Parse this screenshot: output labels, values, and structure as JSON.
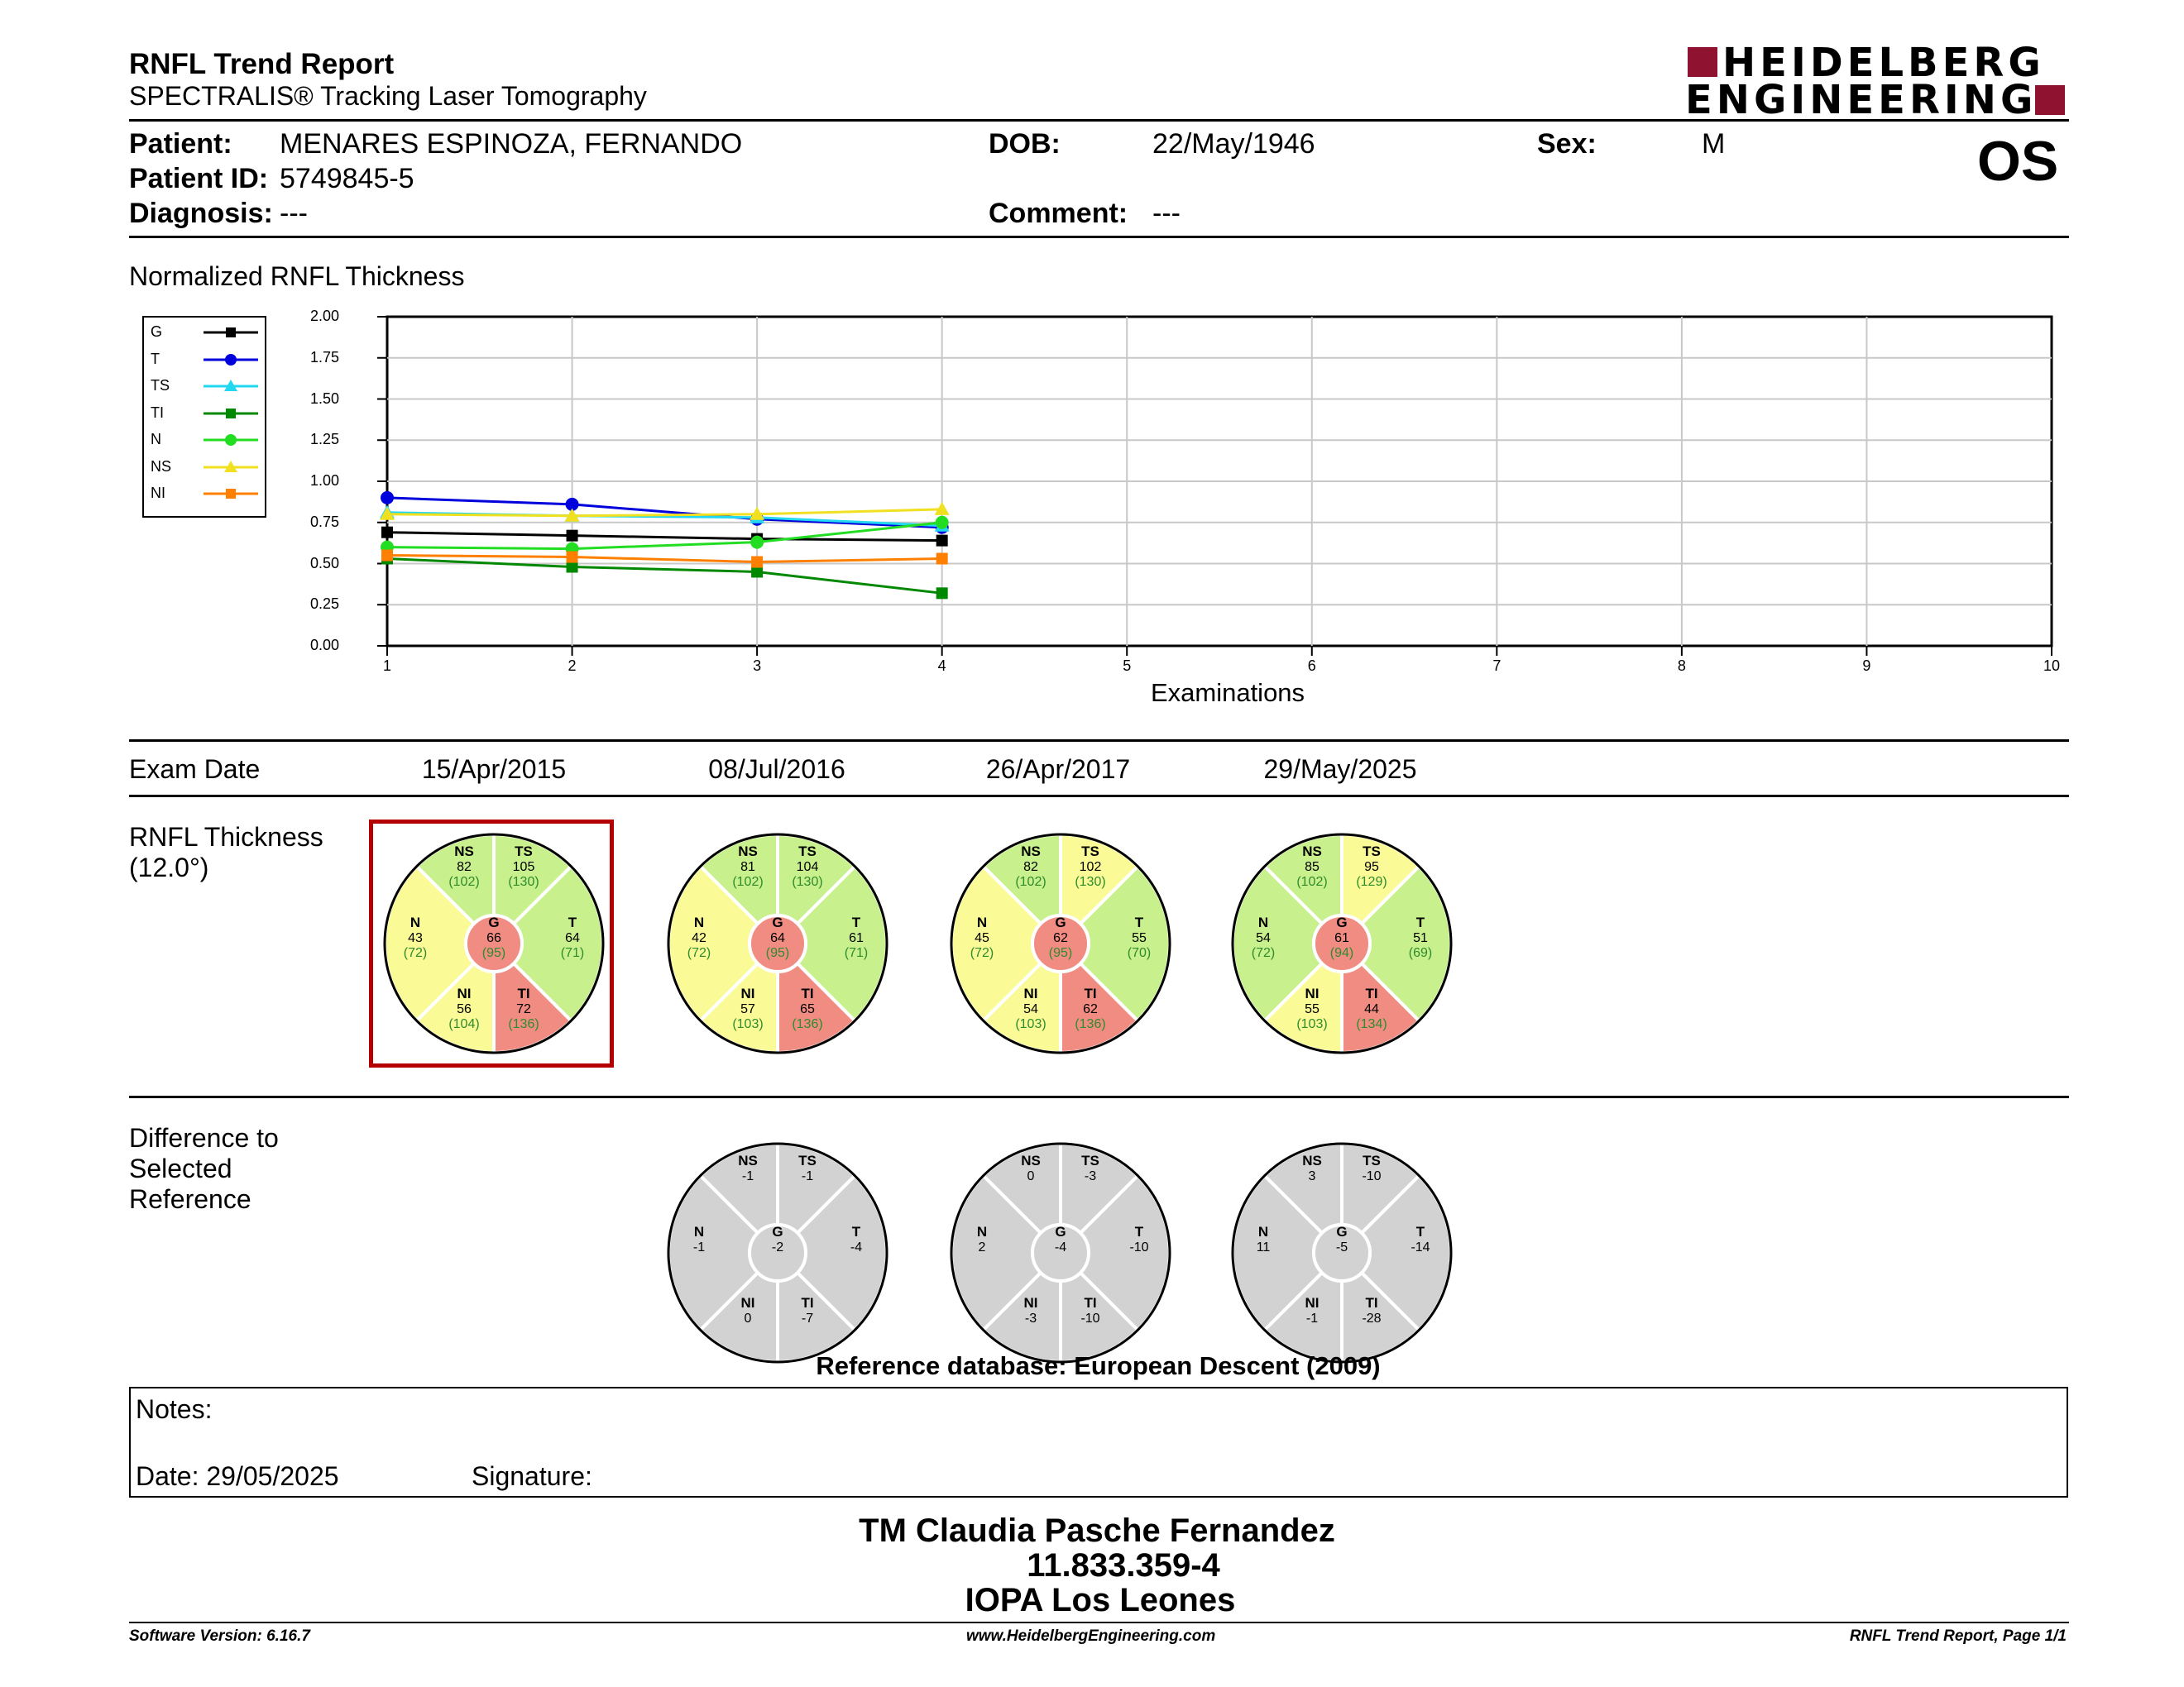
{
  "header": {
    "title": "RNFL Trend Report",
    "subtitle": "SPECTRALIS® Tracking Laser Tomography",
    "logo_line1": "HEIDELBERG",
    "logo_line2": "ENGINEERING",
    "eye": "OS"
  },
  "patient": {
    "patient_label": "Patient:",
    "patient_value": "MENARES ESPINOZA, FERNANDO",
    "id_label": "Patient ID:",
    "id_value": "5749845-5",
    "diagnosis_label": "Diagnosis:",
    "diagnosis_value": "---",
    "dob_label": "DOB:",
    "dob_value": "22/May/1946",
    "comment_label": "Comment:",
    "comment_value": "---",
    "sex_label": "Sex:",
    "sex_value": "M"
  },
  "chart_data": {
    "type": "line",
    "title": "Normalized RNFL Thickness",
    "xlabel": "Examinations",
    "ylabel": "",
    "x": [
      1,
      2,
      3,
      4
    ],
    "xlim": [
      1,
      10
    ],
    "ylim": [
      0,
      2
    ],
    "x_ticks": [
      "1",
      "2",
      "3",
      "4",
      "5",
      "6",
      "7",
      "8",
      "9",
      "10"
    ],
    "y_ticks": [
      "0.00",
      "0.25",
      "0.50",
      "0.75",
      "1.00",
      "1.25",
      "1.50",
      "1.75",
      "2.00"
    ],
    "legend_position": "left",
    "grid": true,
    "series": [
      {
        "name": "G",
        "color": "#000000",
        "marker": "square",
        "values": [
          0.69,
          0.67,
          0.65,
          0.64
        ]
      },
      {
        "name": "T",
        "color": "#0000dd",
        "marker": "circle",
        "values": [
          0.9,
          0.86,
          0.77,
          0.72
        ]
      },
      {
        "name": "TS",
        "color": "#22d8f0",
        "marker": "triangle",
        "values": [
          0.81,
          0.79,
          0.78,
          0.73
        ]
      },
      {
        "name": "TI",
        "color": "#008800",
        "marker": "square",
        "values": [
          0.53,
          0.48,
          0.45,
          0.32
        ]
      },
      {
        "name": "N",
        "color": "#22dd22",
        "marker": "circle",
        "values": [
          0.6,
          0.59,
          0.63,
          0.75
        ]
      },
      {
        "name": "NS",
        "color": "#f0e020",
        "marker": "triangle",
        "values": [
          0.8,
          0.79,
          0.8,
          0.83
        ]
      },
      {
        "name": "NI",
        "color": "#ff8000",
        "marker": "square",
        "values": [
          0.55,
          0.54,
          0.51,
          0.53
        ]
      }
    ]
  },
  "exams": {
    "label": "Exam Date",
    "dates": [
      "15/Apr/2015",
      "08/Jul/2016",
      "26/Apr/2017",
      "29/May/2025"
    ]
  },
  "thickness": {
    "label_line1": "RNFL Thickness",
    "label_line2": "(12.0°)",
    "selected_reference_index": 0,
    "colors": {
      "normal": "#c8f08c",
      "borderline": "#fafa96",
      "outside": "#f08c82"
    },
    "circles": [
      {
        "sectors": {
          "NS": {
            "value": "82",
            "normal": "(102)",
            "status": "normal"
          },
          "TS": {
            "value": "105",
            "normal": "(130)",
            "status": "normal"
          },
          "N": {
            "value": "43",
            "normal": "(72)",
            "status": "borderline"
          },
          "G": {
            "value": "66",
            "normal": "(95)",
            "status": "outside"
          },
          "T": {
            "value": "64",
            "normal": "(71)",
            "status": "normal"
          },
          "NI": {
            "value": "56",
            "normal": "(104)",
            "status": "borderline"
          },
          "TI": {
            "value": "72",
            "normal": "(136)",
            "status": "outside"
          }
        }
      },
      {
        "sectors": {
          "NS": {
            "value": "81",
            "normal": "(102)",
            "status": "normal"
          },
          "TS": {
            "value": "104",
            "normal": "(130)",
            "status": "normal"
          },
          "N": {
            "value": "42",
            "normal": "(72)",
            "status": "borderline"
          },
          "G": {
            "value": "64",
            "normal": "(95)",
            "status": "outside"
          },
          "T": {
            "value": "61",
            "normal": "(71)",
            "status": "normal"
          },
          "NI": {
            "value": "57",
            "normal": "(103)",
            "status": "borderline"
          },
          "TI": {
            "value": "65",
            "normal": "(136)",
            "status": "outside"
          }
        }
      },
      {
        "sectors": {
          "NS": {
            "value": "82",
            "normal": "(102)",
            "status": "normal"
          },
          "TS": {
            "value": "102",
            "normal": "(130)",
            "status": "borderline"
          },
          "N": {
            "value": "45",
            "normal": "(72)",
            "status": "borderline"
          },
          "G": {
            "value": "62",
            "normal": "(95)",
            "status": "outside"
          },
          "T": {
            "value": "55",
            "normal": "(70)",
            "status": "normal"
          },
          "NI": {
            "value": "54",
            "normal": "(103)",
            "status": "borderline"
          },
          "TI": {
            "value": "62",
            "normal": "(136)",
            "status": "outside"
          }
        }
      },
      {
        "sectors": {
          "NS": {
            "value": "85",
            "normal": "(102)",
            "status": "normal"
          },
          "TS": {
            "value": "95",
            "normal": "(129)",
            "status": "borderline"
          },
          "N": {
            "value": "54",
            "normal": "(72)",
            "status": "normal"
          },
          "G": {
            "value": "61",
            "normal": "(94)",
            "status": "outside"
          },
          "T": {
            "value": "51",
            "normal": "(69)",
            "status": "normal"
          },
          "NI": {
            "value": "55",
            "normal": "(103)",
            "status": "borderline"
          },
          "TI": {
            "value": "44",
            "normal": "(134)",
            "status": "outside"
          }
        }
      }
    ]
  },
  "difference": {
    "label_line1": "Difference to",
    "label_line2": "Selected",
    "label_line3": "Reference",
    "color": "#d2d2d2",
    "circles": [
      {
        "NS": "-1",
        "TS": "-1",
        "N": "-1",
        "G": "-2",
        "T": "-4",
        "NI": "0",
        "TI": "-7"
      },
      {
        "NS": "0",
        "TS": "-3",
        "N": "2",
        "G": "-4",
        "T": "-10",
        "NI": "-3",
        "TI": "-10"
      },
      {
        "NS": "3",
        "TS": "-10",
        "N": "11",
        "G": "-5",
        "T": "-14",
        "NI": "-1",
        "TI": "-28"
      }
    ],
    "reference_db": "Reference database: European Descent (2009)"
  },
  "notes": {
    "label": "Notes:",
    "date": "Date: 29/05/2025",
    "signature": "Signature:"
  },
  "stamp": {
    "line1": "TM Claudia Pasche Fernandez",
    "line2": "11.833.359-4",
    "line3": "IOPA Los Leones"
  },
  "footer": {
    "software": "Software Version: 6.16.7",
    "website": "www.HeidelbergEngineering.com",
    "page": "RNFL Trend Report, Page 1/1"
  }
}
